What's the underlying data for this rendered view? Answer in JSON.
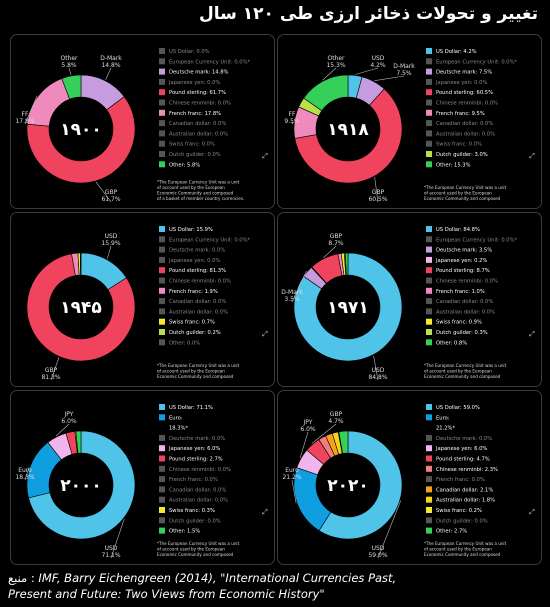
{
  "title": "تغییر و تحولات  ذخائر  ارزی طی ۱۲۰ سال",
  "source": {
    "label": "منبع :",
    "line1": "IMF, Barry Eichengreen (2014), \"International Currencies Past,",
    "line2": "Present and Future: Two Views from Economic History\""
  },
  "colors": {
    "us_dollar": "#4fc3e8",
    "euro": "#0f9ee0",
    "ecu": "#5a5a5a",
    "deutsche_mark": "#c79be0",
    "japanese_yen": "#f2b4ec",
    "pound_sterling": "#f0445e",
    "chinese_renminbi": "#f47e7e",
    "french_franc": "#ef8abd",
    "canadian_dollar": "#f7a21b",
    "australian_dollar": "#f7d21b",
    "swiss_franc": "#f5ea2f",
    "dutch_guilder": "#b7e04a",
    "other": "#35d05a"
  },
  "footnote": "*The European Currency Unit was a unit of account used by the European Economic Community and composed of a basket of member country currencies.",
  "chart_data": [
    {
      "type": "pie",
      "year_label": "۱۹۰۰",
      "legend": [
        {
          "key": "us_dollar",
          "label": "US Dollar: 0.0%"
        },
        {
          "key": "ecu",
          "label": "European Currency Unit: 0.0%*"
        },
        {
          "key": "deutsche_mark",
          "label": "Deutsche mark: 14.8%"
        },
        {
          "key": "japanese_yen",
          "label": "Japanese yen: 0.0%"
        },
        {
          "key": "pound_sterling",
          "label": "Pound sterling: 61.7%"
        },
        {
          "key": "chinese_renminbi",
          "label": "Chinese renminbi: 0.0%"
        },
        {
          "key": "french_franc",
          "label": "French franc: 17.8%"
        },
        {
          "key": "canadian_dollar",
          "label": "Canadian dollar: 0.0%"
        },
        {
          "key": "australian_dollar",
          "label": "Australian dollar: 0.0%"
        },
        {
          "key": "swiss_franc",
          "label": "Swiss franc: 0.0%"
        },
        {
          "key": "dutch_guilder",
          "label": "Dutch guilder: 0.0%"
        },
        {
          "key": "other",
          "label": "Other: 5.8%"
        }
      ],
      "slices": [
        {
          "key": "deutsche_mark",
          "value": 14.8
        },
        {
          "key": "pound_sterling",
          "value": 61.7
        },
        {
          "key": "french_franc",
          "value": 17.8
        },
        {
          "key": "other",
          "value": 5.8
        }
      ],
      "callouts": [
        {
          "name": "D-Mark",
          "value": "14.8%",
          "slice": 0,
          "side": "right",
          "level": "top"
        },
        {
          "name": "GBP",
          "value": "61.7%",
          "slice": 1,
          "side": "right",
          "level": "bottom"
        },
        {
          "name": "FF",
          "value": "17.8%",
          "slice": 2,
          "side": "left",
          "level": "mid"
        },
        {
          "name": "Other",
          "value": "5.8%",
          "slice": 3,
          "side": "left",
          "level": "top"
        }
      ],
      "footnote_lines": [
        "*The European Currency Unit was a unit",
        "of account used by the European",
        "Economic Community and composed",
        "of a basket of member country currencies."
      ]
    },
    {
      "type": "pie",
      "year_label": "۱۹۱۸",
      "legend": [
        {
          "key": "us_dollar",
          "label": "US Dollar: 4.2%"
        },
        {
          "key": "ecu",
          "label": "European Currency Unit: 0.0%*"
        },
        {
          "key": "deutsche_mark",
          "label": "Deutsche mark: 7.5%"
        },
        {
          "key": "japanese_yen",
          "label": "Japanese yen: 0.0%"
        },
        {
          "key": "pound_sterling",
          "label": "Pound sterling: 60.5%"
        },
        {
          "key": "chinese_renminbi",
          "label": "Chinese renminbi: 0.0%"
        },
        {
          "key": "french_franc",
          "label": "French franc: 9.5%"
        },
        {
          "key": "canadian_dollar",
          "label": "Canadian dollar: 0.0%"
        },
        {
          "key": "australian_dollar",
          "label": "Australian dollar: 0.0%"
        },
        {
          "key": "swiss_franc",
          "label": "Swiss franc: 0.0%"
        },
        {
          "key": "dutch_guilder",
          "label": "Dutch guilder: 3.0%"
        },
        {
          "key": "other",
          "label": "Other: 15.3%"
        }
      ],
      "slices": [
        {
          "key": "us_dollar",
          "value": 4.2
        },
        {
          "key": "deutsche_mark",
          "value": 7.5
        },
        {
          "key": "pound_sterling",
          "value": 60.5
        },
        {
          "key": "french_franc",
          "value": 9.5
        },
        {
          "key": "dutch_guilder",
          "value": 3.0
        },
        {
          "key": "other",
          "value": 15.3
        }
      ],
      "callouts": [
        {
          "name": "USD",
          "value": "4.2%",
          "slice": 0,
          "side": "right",
          "level": "top"
        },
        {
          "name": "D-Mark",
          "value": "7.5%",
          "slice": 1,
          "side": "right",
          "level": "top2"
        },
        {
          "name": "GBP",
          "value": "60.5%",
          "slice": 2,
          "side": "right",
          "level": "bottom"
        },
        {
          "name": "FF",
          "value": "9.5%",
          "slice": 3,
          "side": "left",
          "level": "mid"
        },
        {
          "name": "Other",
          "value": "15.3%",
          "slice": 5,
          "side": "left",
          "level": "top"
        }
      ],
      "footnote_lines": [
        "*The European Currency Unit was a unit",
        "of account used by the European",
        "Economic Community and composed"
      ]
    },
    {
      "type": "pie",
      "year_label": "۱۹۴۵",
      "legend": [
        {
          "key": "us_dollar",
          "label": "US Dollar: 15.9%"
        },
        {
          "key": "ecu",
          "label": "European Currency Unit: 0.0%*"
        },
        {
          "key": "deutsche_mark",
          "label": "Deutsche mark: 0.0%"
        },
        {
          "key": "japanese_yen",
          "label": "Japanese yen: 0.0%"
        },
        {
          "key": "pound_sterling",
          "label": "Pound sterling: 81.3%"
        },
        {
          "key": "chinese_renminbi",
          "label": "Chinese renminbi: 0.0%"
        },
        {
          "key": "french_franc",
          "label": "French franc: 1.9%"
        },
        {
          "key": "canadian_dollar",
          "label": "Canadian dollar: 0.0%"
        },
        {
          "key": "australian_dollar",
          "label": "Australian dollar: 0.0%"
        },
        {
          "key": "swiss_franc",
          "label": "Swiss franc: 0.7%"
        },
        {
          "key": "dutch_guilder",
          "label": "Dutch guilder: 0.2%"
        },
        {
          "key": "other",
          "label": "Other: 0.0%"
        }
      ],
      "slices": [
        {
          "key": "us_dollar",
          "value": 15.9
        },
        {
          "key": "pound_sterling",
          "value": 81.3
        },
        {
          "key": "french_franc",
          "value": 1.9
        },
        {
          "key": "swiss_franc",
          "value": 0.7
        },
        {
          "key": "dutch_guilder",
          "value": 0.2
        }
      ],
      "callouts": [
        {
          "name": "USD",
          "value": "15.9%",
          "slice": 0,
          "side": "right",
          "level": "top"
        },
        {
          "name": "GBP",
          "value": "81.3%",
          "slice": 1,
          "side": "left",
          "level": "bottom"
        }
      ],
      "footnote_lines": [
        "*The European Currency Unit was a unit",
        "of account used by the European",
        "Economic Community and composed"
      ]
    },
    {
      "type": "pie",
      "year_label": "۱۹۷۱",
      "legend": [
        {
          "key": "us_dollar",
          "label": "US Dollar: 84.8%"
        },
        {
          "key": "ecu",
          "label": "European Currency Unit: 0.0%*"
        },
        {
          "key": "deutsche_mark",
          "label": "Deutsche mark: 3.5%"
        },
        {
          "key": "japanese_yen",
          "label": "Japanese yen: 0.2%"
        },
        {
          "key": "pound_sterling",
          "label": "Pound sterling: 8.7%"
        },
        {
          "key": "chinese_renminbi",
          "label": "Chinese renminbi: 0.0%"
        },
        {
          "key": "french_franc",
          "label": "French franc: 1.0%"
        },
        {
          "key": "canadian_dollar",
          "label": "Canadian dollar: 0.0%"
        },
        {
          "key": "australian_dollar",
          "label": "Australian dollar: 0.0%"
        },
        {
          "key": "swiss_franc",
          "label": "Swiss franc: 0.9%"
        },
        {
          "key": "dutch_guilder",
          "label": "Dutch guilder: 0.3%"
        },
        {
          "key": "other",
          "label": "Other: 0.8%"
        }
      ],
      "slices": [
        {
          "key": "us_dollar",
          "value": 84.8
        },
        {
          "key": "deutsche_mark",
          "value": 3.5
        },
        {
          "key": "japanese_yen",
          "value": 0.2
        },
        {
          "key": "pound_sterling",
          "value": 8.7
        },
        {
          "key": "french_franc",
          "value": 1.0
        },
        {
          "key": "swiss_franc",
          "value": 0.9
        },
        {
          "key": "dutch_guilder",
          "value": 0.3
        },
        {
          "key": "other",
          "value": 0.8
        }
      ],
      "callouts": [
        {
          "name": "GBP",
          "value": "8.7%",
          "slice": 3,
          "side": "left",
          "level": "top"
        },
        {
          "name": "D-Mark",
          "value": "3.5%",
          "slice": 1,
          "side": "left",
          "level": "mid"
        },
        {
          "name": "USD",
          "value": "84.8%",
          "slice": 0,
          "side": "right",
          "level": "bottom"
        }
      ],
      "footnote_lines": [
        "*The European Currency Unit was a unit",
        "of account used by the European",
        "Economic Community and composed"
      ]
    },
    {
      "type": "pie",
      "year_label": "۲۰۰۰",
      "legend": [
        {
          "key": "us_dollar",
          "label": "US Dollar: 71.1%"
        },
        {
          "key": "euro",
          "label": "Euro:"
        },
        {
          "key": null,
          "label": "18.3%*"
        },
        {
          "key": "deutsche_mark",
          "label": "Deutsche mark: 0.0%"
        },
        {
          "key": "japanese_yen",
          "label": "Japanese yen: 6.0%"
        },
        {
          "key": "pound_sterling",
          "label": "Pound sterling: 2.7%"
        },
        {
          "key": "chinese_renminbi",
          "label": "Chinese renminbi: 0.0%"
        },
        {
          "key": "french_franc",
          "label": "French franc: 0.0%"
        },
        {
          "key": "canadian_dollar",
          "label": "Canadian dollar: 0.0%"
        },
        {
          "key": "australian_dollar",
          "label": "Australian dollar: 0.0%"
        },
        {
          "key": "swiss_franc",
          "label": "Swiss franc: 0.3%"
        },
        {
          "key": "dutch_guilder",
          "label": "Dutch guilder: 0.0%"
        },
        {
          "key": "other",
          "label": "Other: 1.5%"
        }
      ],
      "slices": [
        {
          "key": "us_dollar",
          "value": 71.1
        },
        {
          "key": "euro",
          "value": 18.3
        },
        {
          "key": "japanese_yen",
          "value": 6.0
        },
        {
          "key": "pound_sterling",
          "value": 2.7
        },
        {
          "key": "swiss_franc",
          "value": 0.3
        },
        {
          "key": "other",
          "value": 1.5
        }
      ],
      "callouts": [
        {
          "name": "JPY",
          "value": "6.0%",
          "slice": 2,
          "side": "left",
          "level": "top"
        },
        {
          "name": "Euro",
          "value": "18.3%",
          "slice": 1,
          "side": "left",
          "level": "mid"
        },
        {
          "name": "USD",
          "value": "71.1%",
          "slice": 0,
          "side": "right",
          "level": "bottom"
        }
      ],
      "footnote_lines": [
        "*The European Currency Unit was a unit",
        "of account used by the European",
        "Economic Community and composed"
      ]
    },
    {
      "type": "pie",
      "year_label": "۲۰۲۰",
      "legend": [
        {
          "key": "us_dollar",
          "label": "US Dollar: 59.0%"
        },
        {
          "key": "euro",
          "label": "Euro:"
        },
        {
          "key": null,
          "label": "21.2%*"
        },
        {
          "key": "deutsche_mark",
          "label": "Deutsche mark: 0.0%"
        },
        {
          "key": "japanese_yen",
          "label": "Japanese yen: 6.0%"
        },
        {
          "key": "pound_sterling",
          "label": "Pound sterling: 4.7%"
        },
        {
          "key": "chinese_renminbi",
          "label": "Chinese renminbi: 2.3%"
        },
        {
          "key": "french_franc",
          "label": "French franc: 0.0%"
        },
        {
          "key": "canadian_dollar",
          "label": "Canadian dollar: 2.1%"
        },
        {
          "key": "australian_dollar",
          "label": "Australian dollar: 1.8%"
        },
        {
          "key": "swiss_franc",
          "label": "Swiss franc: 0.2%"
        },
        {
          "key": "dutch_guilder",
          "label": "Dutch guilder: 0.0%"
        },
        {
          "key": "other",
          "label": "Other: 2.7%"
        }
      ],
      "slices": [
        {
          "key": "us_dollar",
          "value": 59.0
        },
        {
          "key": "euro",
          "value": 21.2
        },
        {
          "key": "japanese_yen",
          "value": 6.0
        },
        {
          "key": "pound_sterling",
          "value": 4.7
        },
        {
          "key": "chinese_renminbi",
          "value": 2.3
        },
        {
          "key": "canadian_dollar",
          "value": 2.1
        },
        {
          "key": "australian_dollar",
          "value": 1.8
        },
        {
          "key": "swiss_franc",
          "value": 0.2
        },
        {
          "key": "other",
          "value": 2.7
        }
      ],
      "callouts": [
        {
          "name": "GBP",
          "value": "4.7%",
          "slice": 3,
          "side": "left",
          "level": "top"
        },
        {
          "name": "JPY",
          "value": "6.0%",
          "slice": 2,
          "side": "left",
          "level": "top2"
        },
        {
          "name": "Euro",
          "value": "21.2%",
          "slice": 1,
          "side": "left",
          "level": "mid"
        },
        {
          "name": "USD",
          "value": "59.0%",
          "slice": 0,
          "side": "right",
          "level": "bottom"
        }
      ],
      "footnote_lines": [
        "*The European Currency Unit was a unit",
        "of account used by the European",
        "Economic Community and composed"
      ]
    }
  ]
}
